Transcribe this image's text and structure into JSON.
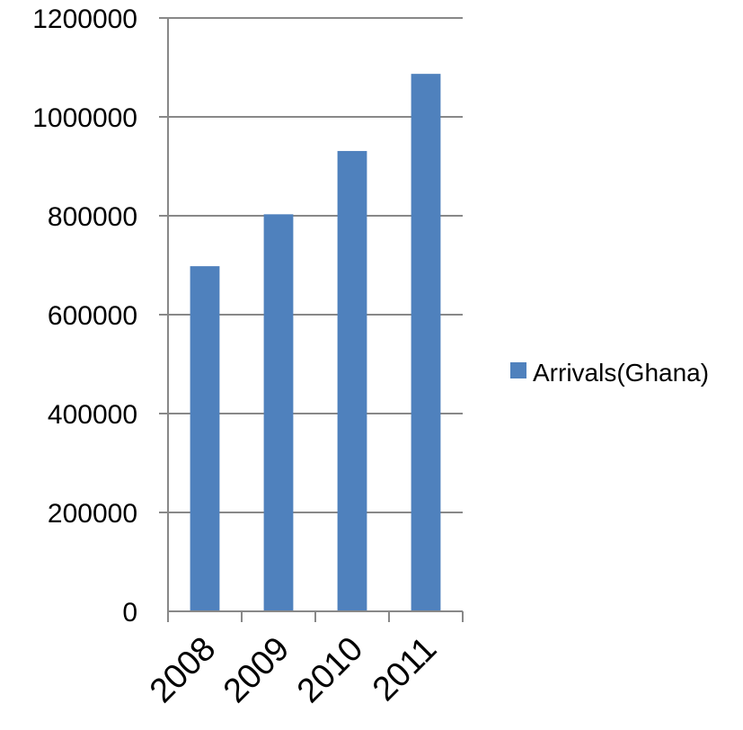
{
  "chart_data": {
    "type": "bar",
    "categories": [
      "2008",
      "2009",
      "2010",
      "2011"
    ],
    "series": [
      {
        "name": "Arrivals(Ghana)",
        "values": [
          698000,
          803000,
          931000,
          1087000
        ],
        "color": "#4F81BD"
      }
    ],
    "title": "",
    "xlabel": "",
    "ylabel": "",
    "ylim": [
      0,
      1200000
    ],
    "yticks": [
      "0",
      "200000",
      "400000",
      "600000",
      "800000",
      "1000000",
      "1200000"
    ],
    "grid": true,
    "legend_position": "right"
  }
}
